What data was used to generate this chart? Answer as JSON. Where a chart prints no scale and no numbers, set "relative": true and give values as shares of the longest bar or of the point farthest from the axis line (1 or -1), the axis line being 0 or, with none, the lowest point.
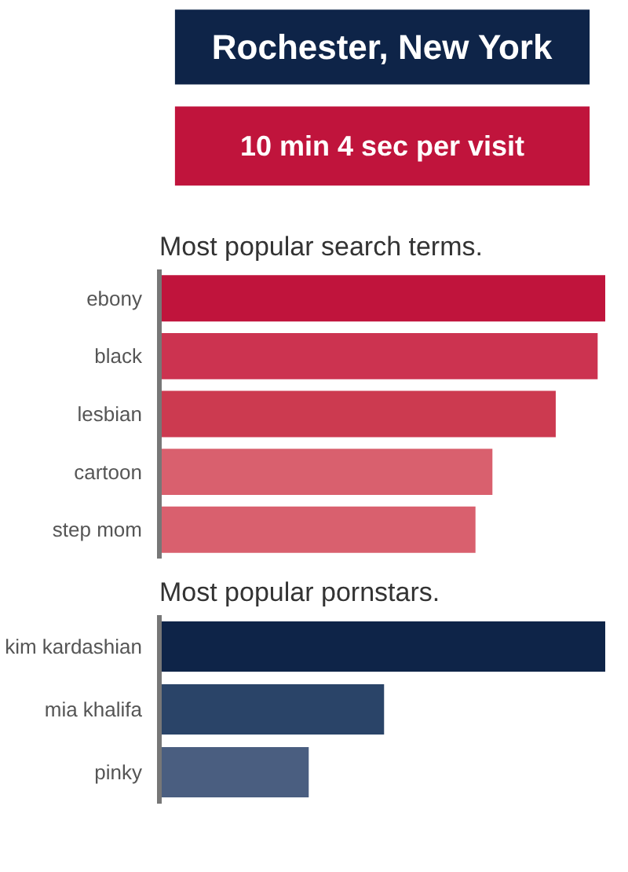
{
  "chart_data": [
    {
      "type": "other",
      "title": "Rochester, New York",
      "subtitle": "10 min 4 sec per visit"
    },
    {
      "type": "bar",
      "orientation": "horizontal",
      "relative": true,
      "title": "Most popular search terms.",
      "categories": [
        "ebony",
        "black",
        "lesbian",
        "cartoon",
        "step mom"
      ],
      "values": [
        1,
        0.983,
        0.889,
        0.747,
        0.709
      ],
      "colors": [
        "#c0143c",
        "#cc3350",
        "#cc3a50",
        "#d9606e",
        "#d9606e"
      ]
    },
    {
      "type": "bar",
      "orientation": "horizontal",
      "relative": true,
      "title": "Most popular pornstars.",
      "categories": [
        "kim kardashian",
        "mia khalifa",
        "pinky"
      ],
      "values": [
        1,
        0.504,
        0.335
      ],
      "colors": [
        "#0e2448",
        "#2a4468",
        "#4a5e80"
      ]
    }
  ]
}
